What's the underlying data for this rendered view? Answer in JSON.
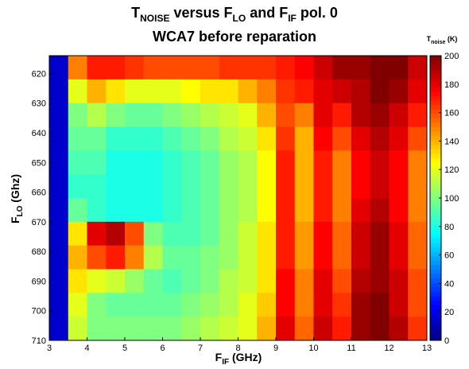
{
  "chart_data": {
    "type": "heatmap",
    "title_parts": [
      "T",
      "NOISE",
      " versus F",
      "LO",
      " and F",
      "IF",
      " pol. 0"
    ],
    "subtitle": "WCA7 before reparation",
    "xlabel_parts": [
      "F",
      "IF",
      " (GHz)"
    ],
    "ylabel_parts": [
      "F",
      "LO",
      " (Ghz)"
    ],
    "colorbar_label_parts": [
      "T",
      "noise",
      " (K)"
    ],
    "colormap": "jet",
    "x_edges": [
      3,
      3.5,
      4,
      4.5,
      5,
      5.5,
      6,
      6.5,
      7,
      7.5,
      8,
      8.5,
      9,
      9.5,
      10,
      10.5,
      11,
      11.5,
      12,
      12.5,
      13
    ],
    "y_edges": [
      614,
      622,
      630,
      638,
      646,
      654,
      662,
      670,
      678,
      686,
      694,
      702,
      710
    ],
    "z": [
      [
        15,
        150,
        170,
        170,
        165,
        160,
        160,
        160,
        160,
        165,
        165,
        165,
        170,
        175,
        185,
        195,
        195,
        200,
        200,
        185
      ],
      [
        15,
        120,
        140,
        130,
        120,
        120,
        120,
        125,
        130,
        130,
        140,
        150,
        165,
        170,
        180,
        185,
        190,
        200,
        195,
        180
      ],
      [
        15,
        100,
        110,
        100,
        95,
        95,
        100,
        105,
        110,
        115,
        120,
        140,
        160,
        150,
        180,
        170,
        190,
        195,
        185,
        170
      ],
      [
        15,
        95,
        95,
        85,
        85,
        85,
        90,
        95,
        100,
        110,
        115,
        130,
        165,
        140,
        175,
        160,
        180,
        190,
        180,
        160
      ],
      [
        15,
        90,
        90,
        80,
        80,
        80,
        85,
        90,
        95,
        105,
        110,
        125,
        170,
        140,
        170,
        150,
        175,
        185,
        175,
        150
      ],
      [
        15,
        85,
        85,
        80,
        80,
        80,
        85,
        90,
        95,
        105,
        110,
        125,
        170,
        140,
        170,
        150,
        175,
        185,
        175,
        150
      ],
      [
        15,
        95,
        85,
        80,
        80,
        80,
        85,
        90,
        95,
        105,
        110,
        125,
        170,
        140,
        170,
        150,
        180,
        190,
        175,
        150
      ],
      [
        15,
        130,
        180,
        190,
        160,
        100,
        90,
        90,
        95,
        105,
        115,
        130,
        170,
        145,
        175,
        155,
        185,
        195,
        180,
        155
      ],
      [
        15,
        140,
        160,
        170,
        150,
        110,
        95,
        95,
        100,
        105,
        115,
        130,
        170,
        145,
        175,
        155,
        185,
        195,
        180,
        155
      ],
      [
        15,
        130,
        120,
        115,
        105,
        95,
        90,
        95,
        100,
        110,
        115,
        130,
        175,
        150,
        180,
        160,
        190,
        195,
        185,
        160
      ],
      [
        15,
        120,
        100,
        95,
        95,
        95,
        95,
        100,
        105,
        110,
        120,
        135,
        175,
        150,
        180,
        165,
        195,
        200,
        185,
        160
      ],
      [
        15,
        115,
        100,
        100,
        100,
        100,
        100,
        105,
        110,
        115,
        120,
        140,
        180,
        155,
        185,
        170,
        195,
        200,
        190,
        165
      ]
    ],
    "xlim": [
      3,
      13
    ],
    "ylim": [
      614,
      710
    ],
    "y_inverted": true,
    "xticks": [
      3,
      4,
      5,
      6,
      7,
      8,
      9,
      10,
      11,
      12,
      13
    ],
    "yticks": [
      620,
      630,
      640,
      650,
      660,
      670,
      680,
      690,
      700,
      710
    ],
    "clim": [
      0,
      200
    ],
    "cticks": [
      0,
      20,
      40,
      60,
      80,
      100,
      120,
      140,
      160,
      180,
      200
    ]
  }
}
